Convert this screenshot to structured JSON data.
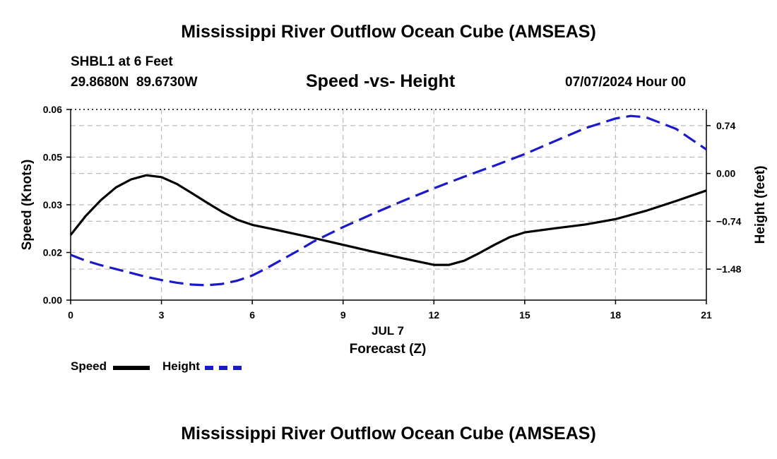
{
  "page": {
    "title": "Mississippi River Outflow Ocean Cube (AMSEAS)",
    "station": "SHBL1 at 6 Feet",
    "coords": "29.8680N  89.6730W",
    "subtitle": "Speed -vs- Height",
    "datetime": "07/07/2024 Hour 00",
    "title_repeat": "Mississippi River Outflow Ocean Cube (AMSEAS)"
  },
  "legend": {
    "speed_label": "Speed",
    "height_label": "Height"
  },
  "colors": {
    "speed": "#000000",
    "height": "#1a1ac8",
    "grid": "#bbbbbb"
  },
  "chart_data": {
    "type": "line",
    "title": "Speed -vs- Height",
    "xlabel": "Forecast (Z)",
    "xlabel_date": "JUL 7",
    "ylabel_left": "Speed (Knots)",
    "ylabel_right": "Height (feet)",
    "xlim": [
      0,
      21
    ],
    "x_ticks": [
      0,
      3,
      6,
      9,
      12,
      15,
      18,
      21
    ],
    "y_left_lim": [
      0,
      0.06
    ],
    "y_left_ticks": [
      {
        "value": 0.0,
        "label": "0.00"
      },
      {
        "value": 0.015,
        "label": "0.02"
      },
      {
        "value": 0.03,
        "label": "0.03"
      },
      {
        "value": 0.045,
        "label": "0.05"
      },
      {
        "value": 0.06,
        "label": "0.06"
      }
    ],
    "y_right_lim": [
      -1.96,
      0.99
    ],
    "y_right_ticks": [
      {
        "value": 0.74,
        "label": "0.74"
      },
      {
        "value": 0.0,
        "label": "0.00"
      },
      {
        "value": -0.74,
        "label": "−0.74"
      },
      {
        "value": -1.48,
        "label": "−1.48"
      }
    ],
    "series": [
      {
        "name": "Speed",
        "axis": "left",
        "style": "solid",
        "x": [
          0,
          0.5,
          1,
          1.5,
          2,
          2.5,
          3,
          3.5,
          4,
          4.5,
          5,
          5.5,
          6,
          7,
          8,
          9,
          10,
          11,
          12,
          12.5,
          13,
          13.5,
          14,
          14.5,
          15,
          16,
          17,
          18,
          19,
          20,
          21
        ],
        "values": [
          0.0205,
          0.0265,
          0.0315,
          0.0355,
          0.038,
          0.0393,
          0.0387,
          0.0366,
          0.0337,
          0.0307,
          0.0278,
          0.0253,
          0.0237,
          0.0217,
          0.0196,
          0.0174,
          0.0152,
          0.0131,
          0.0111,
          0.0111,
          0.0124,
          0.0148,
          0.0174,
          0.0198,
          0.0213,
          0.0226,
          0.0238,
          0.0255,
          0.0281,
          0.0312,
          0.0345
        ]
      },
      {
        "name": "Height",
        "axis": "right",
        "style": "dashed",
        "x": [
          0,
          0.5,
          1,
          1.5,
          2,
          2.5,
          3,
          3.5,
          4,
          4.5,
          5,
          5.5,
          6,
          6.5,
          7,
          7.5,
          8,
          9,
          10,
          11,
          12,
          13,
          14,
          15,
          16,
          17,
          18,
          18.5,
          19,
          20,
          21
        ],
        "values": [
          -1.26,
          -1.35,
          -1.42,
          -1.48,
          -1.54,
          -1.6,
          -1.65,
          -1.69,
          -1.72,
          -1.73,
          -1.71,
          -1.66,
          -1.58,
          -1.46,
          -1.33,
          -1.2,
          -1.06,
          -0.83,
          -0.62,
          -0.42,
          -0.23,
          -0.05,
          0.12,
          0.3,
          0.5,
          0.7,
          0.85,
          0.89,
          0.87,
          0.69,
          0.37
        ]
      }
    ]
  }
}
